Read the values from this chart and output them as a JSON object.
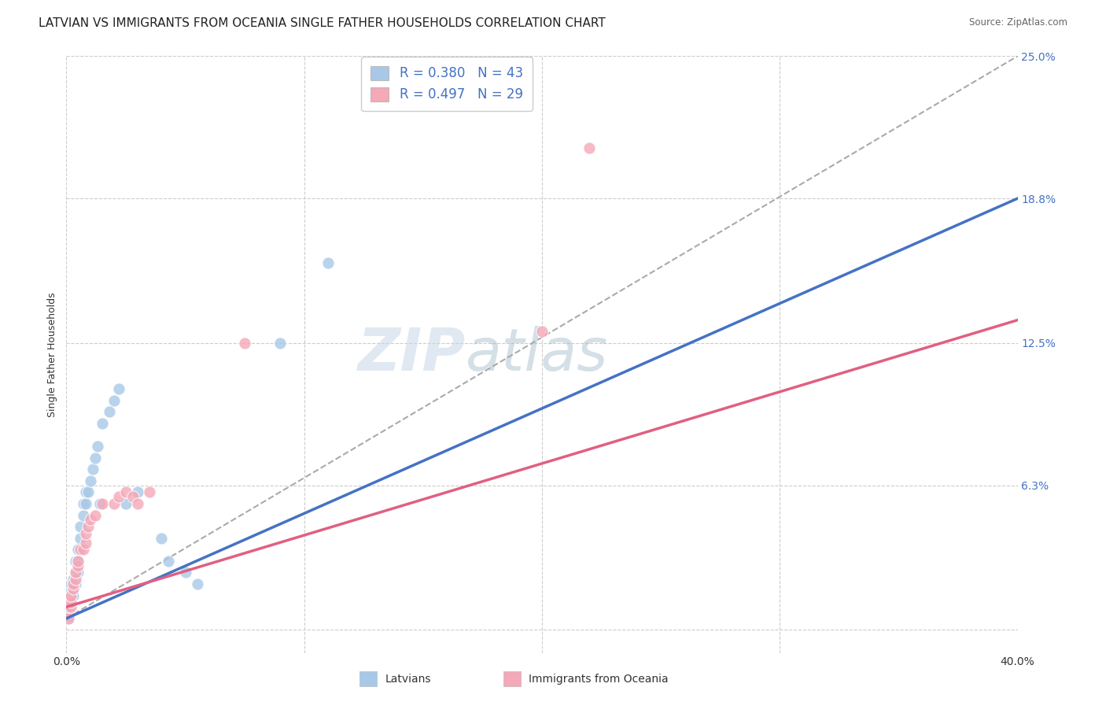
{
  "title": "LATVIAN VS IMMIGRANTS FROM OCEANIA SINGLE FATHER HOUSEHOLDS CORRELATION CHART",
  "source": "Source: ZipAtlas.com",
  "ylabel": "Single Father Households",
  "xlim": [
    0.0,
    0.4
  ],
  "ylim": [
    -0.01,
    0.25
  ],
  "ytick_labels": [
    "",
    "6.3%",
    "12.5%",
    "18.8%",
    "25.0%"
  ],
  "ytick_values": [
    0.0,
    0.063,
    0.125,
    0.188,
    0.25
  ],
  "legend_entries": [
    {
      "label": "R = 0.380   N = 43",
      "color": "#a8c8e8"
    },
    {
      "label": "R = 0.497   N = 29",
      "color": "#f4a8b8"
    }
  ],
  "latvian_dot_color": "#a8c8e8",
  "oceania_dot_color": "#f4a8b8",
  "latvian_line_color": "#4472c4",
  "oceania_line_color": "#e06080",
  "dashed_line_color": "#aaaaaa",
  "latvians_x": [
    0.001,
    0.001,
    0.001,
    0.001,
    0.002,
    0.002,
    0.002,
    0.002,
    0.002,
    0.003,
    0.003,
    0.003,
    0.003,
    0.004,
    0.004,
    0.004,
    0.005,
    0.005,
    0.005,
    0.006,
    0.006,
    0.007,
    0.007,
    0.008,
    0.008,
    0.009,
    0.01,
    0.011,
    0.012,
    0.013,
    0.014,
    0.015,
    0.018,
    0.02,
    0.022,
    0.025,
    0.03,
    0.04,
    0.043,
    0.05,
    0.055,
    0.09,
    0.11
  ],
  "latvians_y": [
    0.005,
    0.006,
    0.008,
    0.01,
    0.01,
    0.012,
    0.015,
    0.018,
    0.02,
    0.015,
    0.018,
    0.02,
    0.022,
    0.02,
    0.025,
    0.03,
    0.025,
    0.03,
    0.035,
    0.04,
    0.045,
    0.05,
    0.055,
    0.055,
    0.06,
    0.06,
    0.065,
    0.07,
    0.075,
    0.08,
    0.055,
    0.09,
    0.095,
    0.1,
    0.105,
    0.055,
    0.06,
    0.04,
    0.03,
    0.025,
    0.02,
    0.125,
    0.16
  ],
  "oceania_x": [
    0.001,
    0.001,
    0.001,
    0.002,
    0.002,
    0.002,
    0.003,
    0.003,
    0.004,
    0.004,
    0.005,
    0.005,
    0.006,
    0.007,
    0.008,
    0.008,
    0.009,
    0.01,
    0.012,
    0.015,
    0.02,
    0.022,
    0.025,
    0.028,
    0.03,
    0.035,
    0.075,
    0.2,
    0.22
  ],
  "oceania_y": [
    0.005,
    0.008,
    0.01,
    0.01,
    0.012,
    0.015,
    0.018,
    0.02,
    0.022,
    0.025,
    0.028,
    0.03,
    0.035,
    0.035,
    0.038,
    0.042,
    0.045,
    0.048,
    0.05,
    0.055,
    0.055,
    0.058,
    0.06,
    0.058,
    0.055,
    0.06,
    0.125,
    0.13,
    0.21
  ],
  "background_color": "#ffffff",
  "grid_color": "#cccccc",
  "watermark_text": "ZIP",
  "watermark_text2": "atlas",
  "title_fontsize": 11,
  "label_fontsize": 9,
  "tick_fontsize": 10,
  "right_tick_color": "#4472c4"
}
